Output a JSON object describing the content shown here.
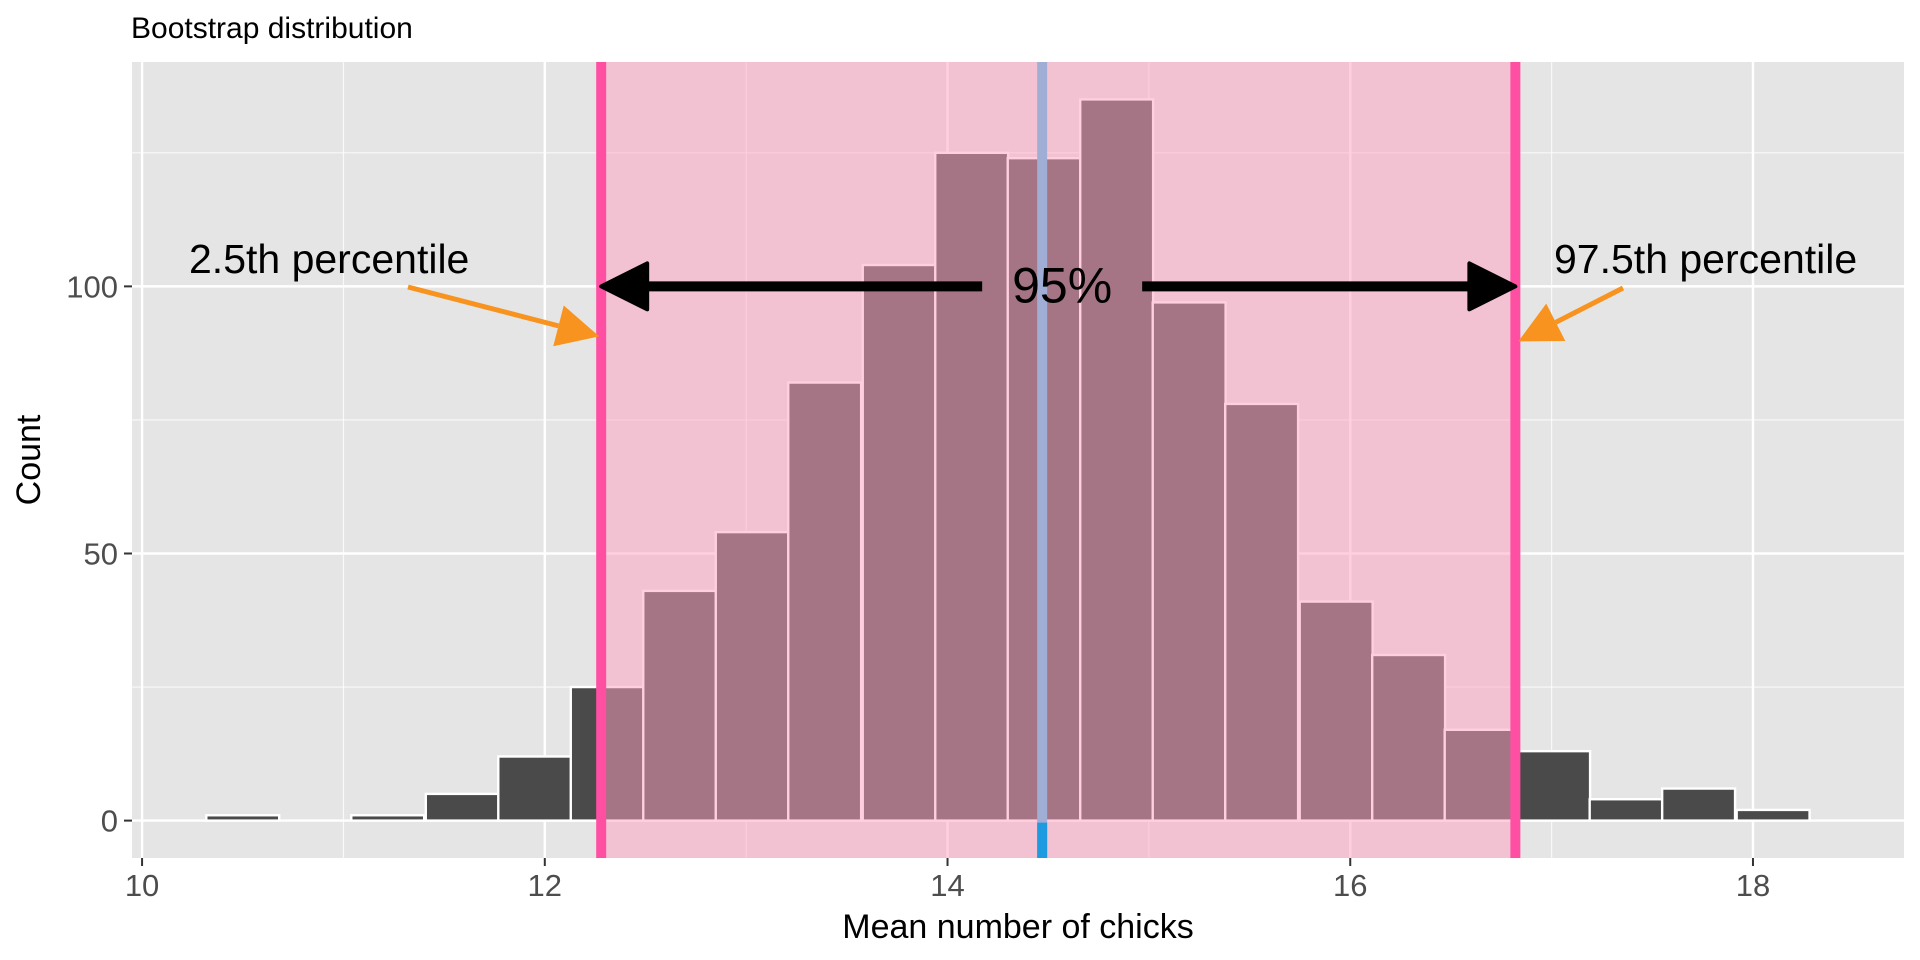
{
  "chart_data": {
    "type": "histogram",
    "title": "Bootstrap distribution",
    "xlabel": "Mean number of chicks",
    "ylabel": "Count",
    "xlim": [
      9.95,
      18.75
    ],
    "ylim": [
      -7,
      142
    ],
    "xticks": [
      10,
      12,
      14,
      16,
      18
    ],
    "xtick_labels": [
      "10",
      "12",
      "14",
      "16",
      "18"
    ],
    "yticks": [
      0,
      50,
      100
    ],
    "ytick_labels": [
      "0",
      "50",
      "100"
    ],
    "grid": true,
    "bin_width": 0.362,
    "bins": [
      {
        "center": 10.5,
        "count": 1
      },
      {
        "center": 10.86,
        "count": 0
      },
      {
        "center": 11.22,
        "count": 1
      },
      {
        "center": 11.59,
        "count": 5
      },
      {
        "center": 11.95,
        "count": 12
      },
      {
        "center": 12.31,
        "count": 25
      },
      {
        "center": 12.67,
        "count": 43
      },
      {
        "center": 13.03,
        "count": 54
      },
      {
        "center": 13.39,
        "count": 82
      },
      {
        "center": 13.76,
        "count": 104
      },
      {
        "center": 14.12,
        "count": 125
      },
      {
        "center": 14.48,
        "count": 124
      },
      {
        "center": 14.84,
        "count": 135
      },
      {
        "center": 15.2,
        "count": 97
      },
      {
        "center": 15.56,
        "count": 78
      },
      {
        "center": 15.93,
        "count": 41
      },
      {
        "center": 16.29,
        "count": 31
      },
      {
        "center": 16.65,
        "count": 17
      },
      {
        "center": 17.01,
        "count": 13
      },
      {
        "center": 17.37,
        "count": 4
      },
      {
        "center": 17.73,
        "count": 6
      },
      {
        "center": 18.1,
        "count": 2
      }
    ],
    "ci_lower": 12.28,
    "ci_upper": 16.82,
    "mean_line": 14.47,
    "arrow_y": 100,
    "annotations": {
      "lower_label": "2.5th percentile",
      "upper_label": "97.5th percentile",
      "center_label": "95%"
    },
    "colors": {
      "panel": "#e5e5e5",
      "grid_major": "#ffffff",
      "bar_fill": "#4a4a4a",
      "bar_stroke": "#ffffff",
      "shade": "#ff9fbf",
      "ci_line": "#ff4fa3",
      "mean_line": "#a0aed6",
      "mean_tick": "#1e9be0",
      "arrow_black": "#000000",
      "arrow_orange": "#f7931e",
      "text": "#1a1a1a",
      "axis_text": "#4d4d4d"
    }
  }
}
